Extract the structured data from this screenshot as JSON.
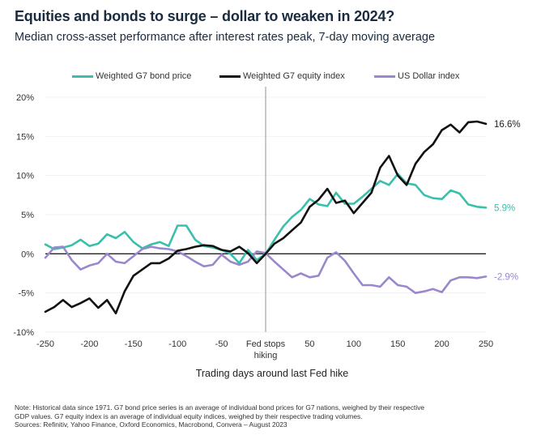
{
  "chart_data": {
    "type": "line",
    "title": "Equities and bonds to surge – dollar to weaken in 2024?",
    "subtitle": "Median cross-asset performance after interest rates peak, 7-day moving average",
    "xlabel": "Trading days around last Fed hike",
    "ylabel": "",
    "xlim": [
      -250,
      250
    ],
    "ylim": [
      -10,
      20
    ],
    "x_ticks": [
      {
        "value": -250,
        "label": "-250"
      },
      {
        "value": -200,
        "label": "-200"
      },
      {
        "value": -150,
        "label": "-150"
      },
      {
        "value": -100,
        "label": "-100"
      },
      {
        "value": -50,
        "label": "-50"
      },
      {
        "value": 0,
        "label": "Fed stops",
        "label2": "hiking"
      },
      {
        "value": 50,
        "label": "50"
      },
      {
        "value": 100,
        "label": "100"
      },
      {
        "value": 150,
        "label": "150"
      },
      {
        "value": 200,
        "label": "200"
      },
      {
        "value": 250,
        "label": "250"
      }
    ],
    "y_ticks": [
      {
        "value": 20,
        "label": "20%"
      },
      {
        "value": 15,
        "label": "15%"
      },
      {
        "value": 10,
        "label": "10%"
      },
      {
        "value": 5,
        "label": "5%"
      },
      {
        "value": 0,
        "label": "0%"
      },
      {
        "value": -5,
        "label": "-5%"
      },
      {
        "value": -10,
        "label": "-10%"
      }
    ],
    "grid": true,
    "legend_position": "top-center",
    "vertical_marker": {
      "x": 0,
      "label": "Fed stops hiking"
    },
    "x": [
      -250,
      -240,
      -230,
      -220,
      -210,
      -200,
      -190,
      -180,
      -170,
      -160,
      -150,
      -140,
      -130,
      -120,
      -110,
      -100,
      -90,
      -80,
      -70,
      -60,
      -50,
      -40,
      -30,
      -20,
      -10,
      0,
      10,
      20,
      30,
      40,
      50,
      60,
      70,
      80,
      90,
      100,
      110,
      120,
      130,
      140,
      150,
      160,
      170,
      180,
      190,
      200,
      210,
      220,
      230,
      240,
      250
    ],
    "series": [
      {
        "name": "Weighted G7 bond price",
        "color": "#3bbfad",
        "end_label": "5.9%",
        "values": [
          1.2,
          0.6,
          0.8,
          1.1,
          1.8,
          1.0,
          1.3,
          2.5,
          2.0,
          2.8,
          1.5,
          0.7,
          1.2,
          1.5,
          1.0,
          3.6,
          3.6,
          1.8,
          1.0,
          0.8,
          0.5,
          0.0,
          -1.2,
          0.5,
          -0.8,
          0.0,
          1.8,
          3.5,
          4.7,
          5.6,
          7.0,
          6.3,
          6.1,
          7.8,
          6.4,
          6.4,
          7.3,
          8.3,
          9.3,
          8.8,
          10.2,
          9.0,
          8.8,
          7.5,
          7.1,
          7.0,
          8.1,
          7.7,
          6.3,
          6.0,
          5.9
        ]
      },
      {
        "name": "Weighted G7 equity index",
        "color": "#111111",
        "end_label": "16.6%",
        "values": [
          -7.4,
          -6.8,
          -5.9,
          -6.8,
          -6.3,
          -5.7,
          -6.9,
          -5.9,
          -7.6,
          -4.8,
          -2.8,
          -2.0,
          -1.2,
          -1.2,
          -0.6,
          0.4,
          0.6,
          0.9,
          1.1,
          1.0,
          0.5,
          0.3,
          0.9,
          0.1,
          -1.2,
          0.0,
          1.3,
          2.0,
          3.0,
          4.0,
          6.0,
          6.9,
          8.3,
          6.5,
          6.8,
          5.2,
          6.5,
          7.8,
          11.0,
          12.5,
          10.0,
          8.8,
          11.5,
          13.0,
          14.0,
          15.8,
          16.5,
          15.5,
          16.8,
          16.9,
          16.6
        ]
      },
      {
        "name": "US Dollar index",
        "color": "#9b87cc",
        "end_label": "-2.9%",
        "values": [
          -0.5,
          0.8,
          0.9,
          -0.8,
          -2.0,
          -1.5,
          -1.2,
          0.0,
          -1.0,
          -1.2,
          -0.3,
          0.6,
          0.9,
          0.7,
          0.6,
          0.3,
          -0.3,
          -1.0,
          -1.6,
          -1.4,
          -0.1,
          -1.0,
          -1.4,
          -1.0,
          0.3,
          0.1,
          -1.0,
          -2.0,
          -3.0,
          -2.5,
          -3.0,
          -2.8,
          -0.5,
          0.2,
          -0.9,
          -2.5,
          -4.0,
          -4.0,
          -4.2,
          -3.0,
          -4.0,
          -4.2,
          -5.0,
          -4.8,
          -4.5,
          -4.9,
          -3.4,
          -3.0,
          -3.0,
          -3.1,
          -2.9
        ]
      }
    ]
  },
  "note": {
    "line1": "Note: Historical data since 1971. G7 bond price series is an average of individual bond prices for G7 nations, weighed by their respective",
    "line2": "GDP values. G7 equity index is an average of individual equity indices, weighed by their respective trading volumes.",
    "line3": "Sources: Refinitiv, Yahoo Finance, Oxford Economics, Macrobond, Convera – August 2023"
  }
}
